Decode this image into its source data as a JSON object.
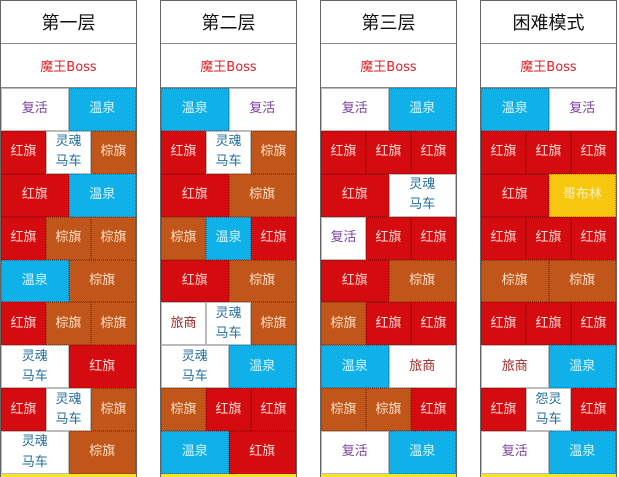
{
  "legend_colors": {
    "red_flag": "#d40c0f",
    "brown_flag": "#c0561a",
    "hot_spring": "#10b0e8",
    "goblin": "#f7c60f",
    "boss_text": "#e0252a"
  },
  "columns": [
    {
      "title": "第一层",
      "boss": "魔王Boss",
      "cells": [
        {
          "label": "复活",
          "type": "white",
          "text": "revive",
          "col": "1 / span 3",
          "row": "1"
        },
        {
          "label": "温泉",
          "type": "blue",
          "col": "4 / span 3",
          "row": "1"
        },
        {
          "label": "红旗",
          "type": "red",
          "col": "1 / span 2",
          "row": "2"
        },
        {
          "label": "灵魂\n马车",
          "type": "white",
          "text": "carriage",
          "col": "3 / span 2",
          "row": "2"
        },
        {
          "label": "棕旗",
          "type": "brown",
          "col": "5 / span 2",
          "row": "2"
        },
        {
          "label": "红旗",
          "type": "red",
          "col": "1 / span 3",
          "row": "3"
        },
        {
          "label": "温泉",
          "type": "blue",
          "col": "4 / span 3",
          "row": "3"
        },
        {
          "label": "红旗",
          "type": "red",
          "col": "1 / span 2",
          "row": "4"
        },
        {
          "label": "棕旗",
          "type": "brown",
          "col": "3 / span 2",
          "row": "4"
        },
        {
          "label": "棕旗",
          "type": "brown",
          "col": "5 / span 2",
          "row": "4"
        },
        {
          "label": "温泉",
          "type": "blue",
          "col": "1 / span 3",
          "row": "5"
        },
        {
          "label": "棕旗",
          "type": "brown",
          "col": "4 / span 3",
          "row": "5"
        },
        {
          "label": "红旗",
          "type": "red",
          "col": "1 / span 2",
          "row": "6"
        },
        {
          "label": "棕旗",
          "type": "brown",
          "col": "3 / span 2",
          "row": "6"
        },
        {
          "label": "棕旗",
          "type": "brown",
          "col": "5 / span 2",
          "row": "6"
        },
        {
          "label": "灵魂\n马车",
          "type": "white",
          "text": "carriage",
          "col": "1 / span 3",
          "row": "7"
        },
        {
          "label": "红旗",
          "type": "red",
          "col": "4 / span 3",
          "row": "7"
        },
        {
          "label": "红旗",
          "type": "red",
          "col": "1 / span 2",
          "row": "8"
        },
        {
          "label": "灵魂\n马车",
          "type": "white",
          "text": "carriage",
          "col": "3 / span 2",
          "row": "8"
        },
        {
          "label": "棕旗",
          "type": "brown",
          "col": "5 / span 2",
          "row": "8"
        },
        {
          "label": "灵魂\n马车",
          "type": "white",
          "text": "carriage",
          "col": "1 / span 3",
          "row": "9"
        },
        {
          "label": "棕旗",
          "type": "brown",
          "col": "4 / span 3",
          "row": "9"
        }
      ]
    },
    {
      "title": "第二层",
      "boss": "魔王Boss",
      "cells": [
        {
          "label": "温泉",
          "type": "blue",
          "col": "1 / span 3",
          "row": "1"
        },
        {
          "label": "复活",
          "type": "white",
          "text": "revive",
          "col": "4 / span 3",
          "row": "1"
        },
        {
          "label": "红旗",
          "type": "red",
          "col": "1 / span 2",
          "row": "2"
        },
        {
          "label": "灵魂\n马车",
          "type": "white",
          "text": "carriage",
          "col": "3 / span 2",
          "row": "2"
        },
        {
          "label": "棕旗",
          "type": "brown",
          "col": "5 / span 2",
          "row": "2"
        },
        {
          "label": "红旗",
          "type": "red",
          "col": "1 / span 3",
          "row": "3"
        },
        {
          "label": "棕旗",
          "type": "brown",
          "col": "4 / span 3",
          "row": "3"
        },
        {
          "label": "棕旗",
          "type": "brown",
          "col": "1 / span 2",
          "row": "4"
        },
        {
          "label": "温泉",
          "type": "blue",
          "col": "3 / span 2",
          "row": "4"
        },
        {
          "label": "红旗",
          "type": "red",
          "col": "5 / span 2",
          "row": "4"
        },
        {
          "label": "红旗",
          "type": "red",
          "col": "1 / span 3",
          "row": "5"
        },
        {
          "label": "棕旗",
          "type": "brown",
          "col": "4 / span 3",
          "row": "5"
        },
        {
          "label": "旅商",
          "type": "white",
          "text": "merchant",
          "col": "1 / span 2",
          "row": "6"
        },
        {
          "label": "灵魂\n马车",
          "type": "white",
          "text": "carriage",
          "col": "3 / span 2",
          "row": "6"
        },
        {
          "label": "棕旗",
          "type": "brown",
          "col": "5 / span 2",
          "row": "6"
        },
        {
          "label": "灵魂\n马车",
          "type": "white",
          "text": "carriage",
          "col": "1 / span 3",
          "row": "7"
        },
        {
          "label": "温泉",
          "type": "blue",
          "col": "4 / span 3",
          "row": "7"
        },
        {
          "label": "棕旗",
          "type": "brown",
          "col": "1 / span 2",
          "row": "8"
        },
        {
          "label": "红旗",
          "type": "red",
          "col": "3 / span 2",
          "row": "8"
        },
        {
          "label": "红旗",
          "type": "red",
          "col": "5 / span 2",
          "row": "8"
        },
        {
          "label": "温泉",
          "type": "blue",
          "col": "1 / span 3",
          "row": "9"
        },
        {
          "label": "红旗",
          "type": "red",
          "col": "4 / span 3",
          "row": "9"
        }
      ]
    },
    {
      "title": "第三层",
      "boss": "魔王Boss",
      "cells": [
        {
          "label": "复活",
          "type": "white",
          "text": "revive",
          "col": "1 / span 3",
          "row": "1"
        },
        {
          "label": "温泉",
          "type": "blue",
          "col": "4 / span 3",
          "row": "1"
        },
        {
          "label": "红旗",
          "type": "red",
          "col": "1 / span 2",
          "row": "2"
        },
        {
          "label": "红旗",
          "type": "red",
          "col": "3 / span 2",
          "row": "2"
        },
        {
          "label": "红旗",
          "type": "red",
          "col": "5 / span 2",
          "row": "2"
        },
        {
          "label": "红旗",
          "type": "red",
          "col": "1 / span 3",
          "row": "3"
        },
        {
          "label": "灵魂\n马车",
          "type": "white",
          "text": "carriage",
          "col": "4 / span 3",
          "row": "3"
        },
        {
          "label": "复活",
          "type": "white",
          "text": "revive",
          "col": "1 / span 2",
          "row": "4"
        },
        {
          "label": "红旗",
          "type": "red",
          "col": "3 / span 2",
          "row": "4"
        },
        {
          "label": "红旗",
          "type": "red",
          "col": "5 / span 2",
          "row": "4"
        },
        {
          "label": "红旗",
          "type": "red",
          "col": "1 / span 3",
          "row": "5"
        },
        {
          "label": "棕旗",
          "type": "brown",
          "col": "4 / span 3",
          "row": "5"
        },
        {
          "label": "棕旗",
          "type": "brown",
          "col": "1 / span 2",
          "row": "6"
        },
        {
          "label": "红旗",
          "type": "red",
          "col": "3 / span 2",
          "row": "6"
        },
        {
          "label": "红旗",
          "type": "red",
          "col": "5 / span 2",
          "row": "6"
        },
        {
          "label": "温泉",
          "type": "blue",
          "col": "1 / span 3",
          "row": "7"
        },
        {
          "label": "旅商",
          "type": "white",
          "text": "merchant",
          "col": "4 / span 3",
          "row": "7"
        },
        {
          "label": "棕旗",
          "type": "brown",
          "col": "1 / span 2",
          "row": "8"
        },
        {
          "label": "棕旗",
          "type": "brown",
          "col": "3 / span 2",
          "row": "8"
        },
        {
          "label": "红旗",
          "type": "red",
          "col": "5 / span 2",
          "row": "8"
        },
        {
          "label": "复活",
          "type": "white",
          "text": "revive",
          "col": "1 / span 3",
          "row": "9"
        },
        {
          "label": "温泉",
          "type": "blue",
          "col": "4 / span 3",
          "row": "9"
        }
      ]
    },
    {
      "title": "困难模式",
      "boss": "魔王Boss",
      "cells": [
        {
          "label": "温泉",
          "type": "blue",
          "col": "1 / span 3",
          "row": "1"
        },
        {
          "label": "复活",
          "type": "white",
          "text": "revive",
          "col": "4 / span 3",
          "row": "1"
        },
        {
          "label": "红旗",
          "type": "red",
          "col": "1 / span 2",
          "row": "2"
        },
        {
          "label": "红旗",
          "type": "red",
          "col": "3 / span 2",
          "row": "2"
        },
        {
          "label": "红旗",
          "type": "red",
          "col": "5 / span 2",
          "row": "2"
        },
        {
          "label": "红旗",
          "type": "red",
          "col": "1 / span 3",
          "row": "3"
        },
        {
          "label": "哥布林",
          "type": "yellow",
          "col": "4 / span 3",
          "row": "3"
        },
        {
          "label": "红旗",
          "type": "red",
          "col": "1 / span 2",
          "row": "4"
        },
        {
          "label": "红旗",
          "type": "red",
          "col": "3 / span 2",
          "row": "4"
        },
        {
          "label": "红旗",
          "type": "red",
          "col": "5 / span 2",
          "row": "4"
        },
        {
          "label": "棕旗",
          "type": "brown",
          "col": "1 / span 3",
          "row": "5"
        },
        {
          "label": "棕旗",
          "type": "brown",
          "col": "4 / span 3",
          "row": "5"
        },
        {
          "label": "红旗",
          "type": "red",
          "col": "1 / span 2",
          "row": "6"
        },
        {
          "label": "红旗",
          "type": "red",
          "col": "3 / span 2",
          "row": "6"
        },
        {
          "label": "红旗",
          "type": "red",
          "col": "5 / span 2",
          "row": "6"
        },
        {
          "label": "旅商",
          "type": "white",
          "text": "merchant",
          "col": "1 / span 3",
          "row": "7"
        },
        {
          "label": "温泉",
          "type": "blue",
          "col": "4 / span 3",
          "row": "7"
        },
        {
          "label": "红旗",
          "type": "red",
          "col": "1 / span 2",
          "row": "8"
        },
        {
          "label": "怨灵\n马车",
          "type": "white",
          "text": "carriage",
          "col": "3 / span 2",
          "row": "8"
        },
        {
          "label": "红旗",
          "type": "red",
          "col": "5 / span 2",
          "row": "8"
        },
        {
          "label": "复活",
          "type": "white",
          "text": "revive",
          "col": "1 / span 3",
          "row": "9"
        },
        {
          "label": "温泉",
          "type": "blue",
          "col": "4 / span 3",
          "row": "9"
        }
      ]
    }
  ]
}
